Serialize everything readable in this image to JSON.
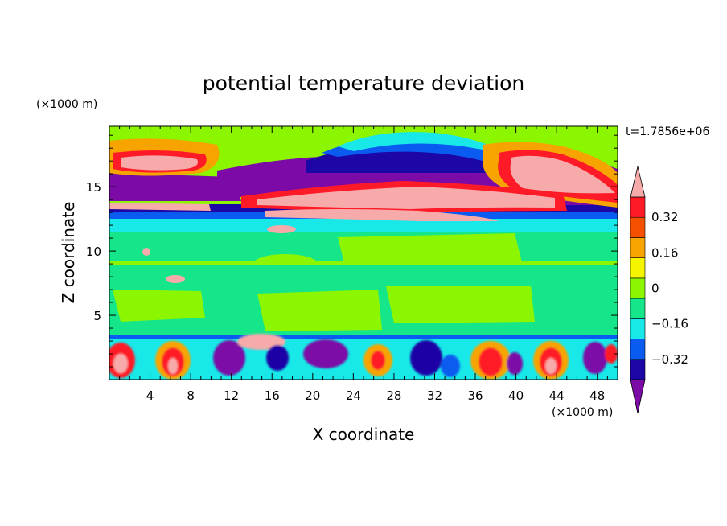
{
  "chart_data": {
    "type": "heatmap",
    "title": "potential temperature deviation",
    "xlabel": "X coordinate",
    "ylabel": "Z coordinate",
    "x_unit": "(×1000 m)",
    "y_unit": "(×1000 m)",
    "time_label": "t=1.7856e+06",
    "xlim": [
      0,
      50
    ],
    "ylim": [
      0,
      19.7
    ],
    "x_ticks": [
      "4",
      "8",
      "12",
      "16",
      "20",
      "24",
      "28",
      "32",
      "36",
      "40",
      "44",
      "48"
    ],
    "x_tick_values": [
      4,
      8,
      12,
      16,
      20,
      24,
      28,
      32,
      36,
      40,
      44,
      48
    ],
    "y_ticks": [
      "5",
      "10",
      "15"
    ],
    "y_tick_values": [
      5,
      10,
      15
    ],
    "colorbar": {
      "levels": [
        -0.4,
        -0.32,
        -0.24,
        -0.16,
        -0.08,
        0,
        0.08,
        0.16,
        0.24,
        0.32,
        0.4
      ],
      "tick_labels": [
        "0.32",
        "0.16",
        "0",
        "−0.16",
        "−0.32"
      ],
      "tick_values": [
        0.32,
        0.16,
        0,
        -0.16,
        -0.32
      ],
      "colors": [
        "#7b0aa6",
        "#1c06a6",
        "#0a5cf0",
        "#18e8e8",
        "#16e68a",
        "#8cf500",
        "#f5f500",
        "#f7a400",
        "#f55000",
        "#ff1a28",
        "#f7aaaa"
      ],
      "extends": "both"
    },
    "grid": false,
    "legend": "right colorbar"
  }
}
